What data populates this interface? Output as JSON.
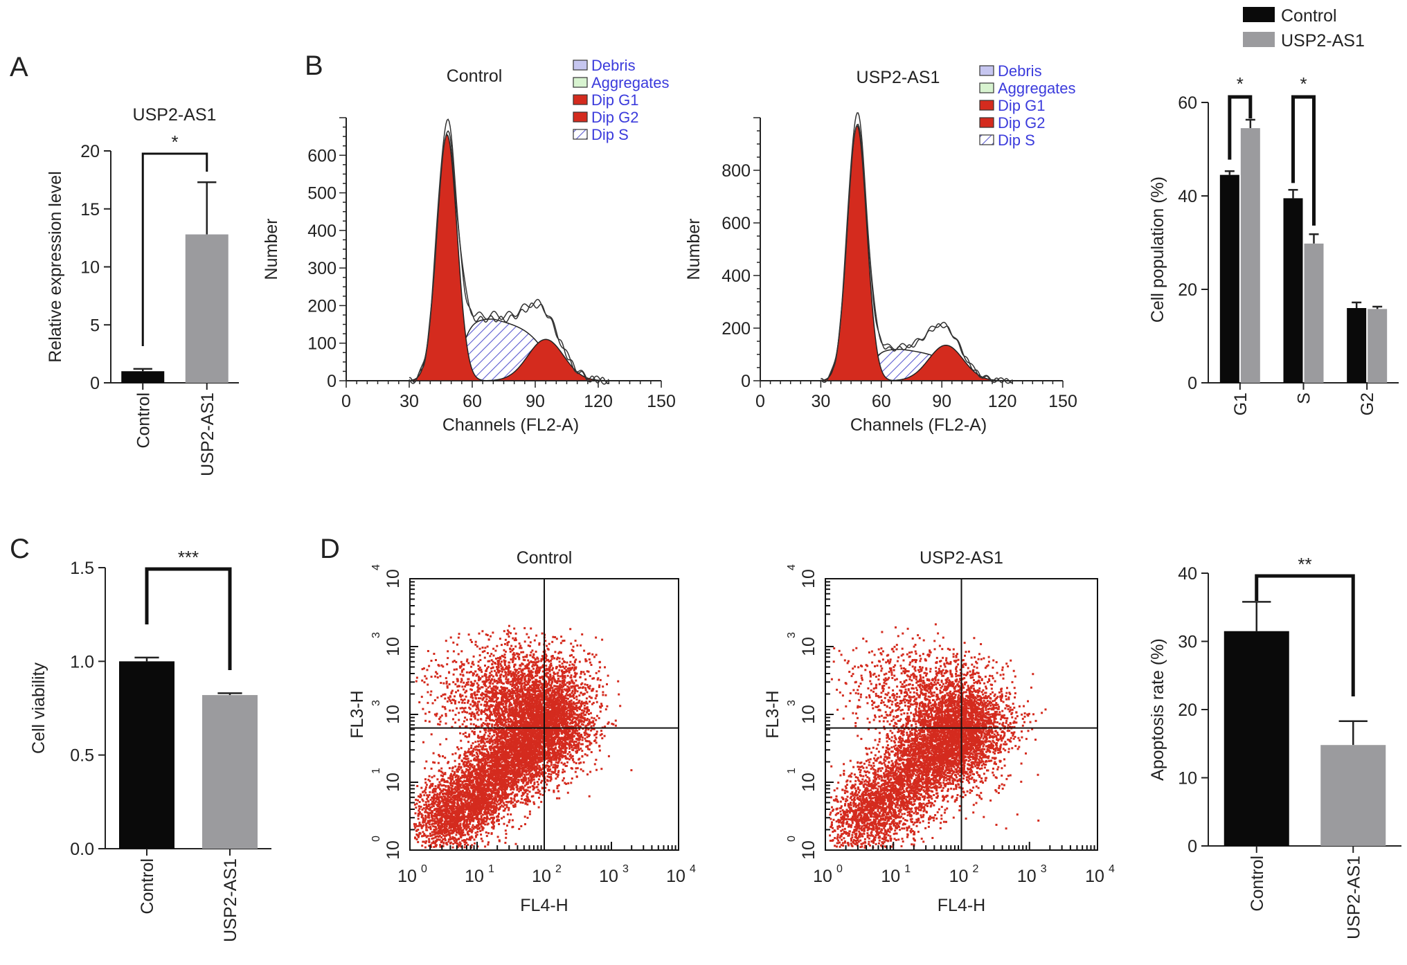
{
  "colors": {
    "control": "#0a0a0a",
    "usp2": "#9b9b9e",
    "flow_red": "#d42b1e",
    "s_phase": "#5b5bd0",
    "legend_text": "#3b3bdc"
  },
  "panel_letters": [
    "A",
    "B",
    "C",
    "D"
  ],
  "legend": {
    "control": "Control",
    "usp2": "USP2-AS1"
  },
  "chart_data": [
    {
      "id": "A",
      "type": "bar",
      "title": "USP2-AS1",
      "ylabel": "Relative expression level",
      "categories": [
        "Control",
        "USP2-AS1"
      ],
      "values": [
        1.0,
        12.8
      ],
      "errors": [
        0.2,
        4.5
      ],
      "ylim": [
        0,
        20
      ],
      "yticks": [
        "0",
        "5",
        "10",
        "15",
        "20"
      ],
      "significance": "*"
    },
    {
      "id": "B-control",
      "type": "area",
      "title": "Control",
      "xlabel": "Channels (FL2-A)",
      "ylabel": "Number",
      "xlim": [
        0,
        150
      ],
      "ylim": [
        0,
        700
      ],
      "xticks": [
        "0",
        "30",
        "60",
        "90",
        "120",
        "150"
      ],
      "yticks": [
        "0",
        "100",
        "200",
        "300",
        "400",
        "500",
        "600"
      ],
      "g1_peak": {
        "x": 48,
        "y": 655
      },
      "g2_peak": {
        "x": 95,
        "y": 110
      },
      "s_plateau": 165,
      "legend": [
        "Debris",
        "Aggregates",
        "Dip G1",
        "Dip G2",
        "Dip S"
      ]
    },
    {
      "id": "B-usp2",
      "type": "area",
      "title": "USP2-AS1",
      "xlabel": "Channels (FL2-A)",
      "ylabel": "Number",
      "xlim": [
        0,
        150
      ],
      "ylim": [
        0,
        1000
      ],
      "xticks": [
        "0",
        "30",
        "60",
        "90",
        "120",
        "150"
      ],
      "yticks": [
        "0",
        "200",
        "400",
        "600",
        "800"
      ],
      "g1_peak": {
        "x": 48,
        "y": 970
      },
      "g2_peak": {
        "x": 92,
        "y": 135
      },
      "s_plateau": 120,
      "legend": [
        "Debris",
        "Aggregates",
        "Dip G1",
        "Dip G2",
        "Dip S"
      ]
    },
    {
      "id": "B-bar",
      "type": "bar",
      "ylabel": "Cell population (%)",
      "categories": [
        "G1",
        "S",
        "G2"
      ],
      "series": [
        {
          "name": "Control",
          "values": [
            44.5,
            39.5,
            16.0
          ],
          "errors": [
            0.8,
            1.8,
            1.2
          ]
        },
        {
          "name": "USP2-AS1",
          "values": [
            54.5,
            29.8,
            15.8
          ],
          "errors": [
            1.8,
            2.0,
            0.5
          ]
        }
      ],
      "ylim": [
        0,
        60
      ],
      "yticks": [
        "0",
        "20",
        "40",
        "60"
      ],
      "significance": [
        "*",
        "*",
        ""
      ]
    },
    {
      "id": "C",
      "type": "bar",
      "ylabel": "Cell viability",
      "categories": [
        "Control",
        "USP2-AS1"
      ],
      "values": [
        1.0,
        0.82
      ],
      "errors": [
        0.02,
        0.01
      ],
      "ylim": [
        0,
        1.5
      ],
      "yticks": [
        "0.0",
        "0.5",
        "1.0",
        "1.5"
      ],
      "significance": "***"
    },
    {
      "id": "D-control",
      "type": "scatter",
      "title": "Control",
      "xlabel": "FL4-H",
      "ylabel": "FL3-H",
      "xticks": [
        "10",
        "10",
        "10",
        "10",
        "10"
      ],
      "xtick_exp": [
        "0",
        "1",
        "2",
        "3",
        "4"
      ],
      "yticks": [
        "10",
        "10",
        "10",
        "10",
        "10"
      ],
      "ytick_exp": [
        "0",
        "1",
        "3",
        "3",
        "4"
      ],
      "quadrant_x": 2.0,
      "quadrant_y": 1.8
    },
    {
      "id": "D-usp2",
      "type": "scatter",
      "title": "USP2-AS1",
      "xlabel": "FL4-H",
      "ylabel": "FL3-H",
      "xticks": [
        "10",
        "10",
        "10",
        "10",
        "10"
      ],
      "xtick_exp": [
        "0",
        "1",
        "2",
        "3",
        "4"
      ],
      "yticks": [
        "10",
        "10",
        "10",
        "10",
        "10"
      ],
      "ytick_exp": [
        "0",
        "1",
        "3",
        "3",
        "4"
      ],
      "quadrant_x": 2.0,
      "quadrant_y": 1.8
    },
    {
      "id": "D-bar",
      "type": "bar",
      "ylabel": "Apoptosis rate (%)",
      "categories": [
        "Control",
        "USP2-AS1"
      ],
      "values": [
        31.5,
        14.8
      ],
      "errors": [
        4.3,
        3.5
      ],
      "ylim": [
        0,
        40
      ],
      "yticks": [
        "0",
        "10",
        "20",
        "30",
        "40"
      ],
      "significance": "**"
    }
  ]
}
